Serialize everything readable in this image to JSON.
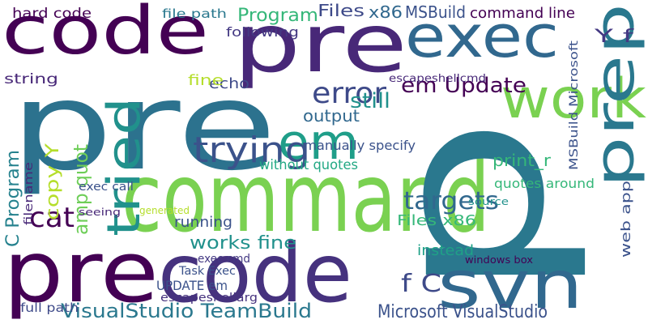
{
  "words": [
    {
      "text": "code",
      "color": "#440154"
    },
    {
      "text": "pre",
      "color": "#482878"
    },
    {
      "text": "exec",
      "color": "#31688e"
    },
    {
      "text": "pre",
      "color": "#2c728e"
    },
    {
      "text": "command",
      "color": "#7ad151"
    },
    {
      "text": "pre",
      "color": "#440154"
    },
    {
      "text": "code",
      "color": "#46327e"
    },
    {
      "text": "p",
      "color": "#2a788e"
    },
    {
      "text": "svn",
      "color": "#31688e"
    },
    {
      "text": "work",
      "color": "#7ad151"
    },
    {
      "text": "tried",
      "color": "#21918c"
    },
    {
      "text": "em",
      "color": "#1f9e89"
    },
    {
      "text": "prep",
      "color": "#2a788e"
    },
    {
      "text": "trying",
      "color": "#3b528b"
    },
    {
      "text": "targets",
      "color": "#31688e"
    },
    {
      "text": "error",
      "color": "#3e4a89"
    },
    {
      "text": "em Update",
      "color": "#440154"
    },
    {
      "text": "VisualStudio TeamBuild",
      "color": "#2a788e"
    },
    {
      "text": "Microsoft VisualStudio",
      "color": "#3b528b"
    },
    {
      "text": "hard code",
      "color": "#440154"
    },
    {
      "text": "Program",
      "color": "#35b779"
    },
    {
      "text": "Files",
      "color": "#3e4a89"
    },
    {
      "text": "x86",
      "color": "#31688e"
    },
    {
      "text": "MSBuild",
      "color": "#3b528b"
    },
    {
      "text": "command line",
      "color": "#440154"
    },
    {
      "text": "cat",
      "color": "#440154"
    },
    {
      "text": "amp quot",
      "color": "#6ece58"
    },
    {
      "text": "copy Y",
      "color": "#b5de2b"
    },
    {
      "text": "C Program",
      "color": "#26828e"
    },
    {
      "text": "works fine",
      "color": "#21918c"
    },
    {
      "text": "Files x86",
      "color": "#35b779"
    },
    {
      "text": "Y f",
      "color": "#443983"
    },
    {
      "text": "echo",
      "color": "#3e4a89"
    },
    {
      "text": "string",
      "color": "#482878"
    },
    {
      "text": "output",
      "color": "#31688e"
    },
    {
      "text": "still",
      "color": "#21918c"
    },
    {
      "text": "without quotes",
      "color": "#22a884"
    },
    {
      "text": "print_r",
      "color": "#35b779"
    },
    {
      "text": "instead",
      "color": "#1fa187"
    },
    {
      "text": "f C",
      "color": "#3e4a89"
    },
    {
      "text": "UPDATE em",
      "color": "#3b528b"
    },
    {
      "text": "full path",
      "color": "#3e4a89"
    },
    {
      "text": "running",
      "color": "#3b528b"
    },
    {
      "text": "file path",
      "color": "#2a788e"
    },
    {
      "text": "following",
      "color": "#443983"
    },
    {
      "text": "fine",
      "color": "#b5de2b"
    },
    {
      "text": "MSBuild Microsoft",
      "color": "#3b528b"
    },
    {
      "text": "escapeshellcmd",
      "color": "#482878"
    },
    {
      "text": "manually specify",
      "color": "#3b528b"
    },
    {
      "text": "quotes around",
      "color": "#35b779"
    },
    {
      "text": "exec call",
      "color": "#3b528b"
    },
    {
      "text": "filename",
      "color": "#482878"
    },
    {
      "text": "Task Exec",
      "color": "#3b528b"
    },
    {
      "text": "escapeshellarg",
      "color": "#46327e"
    },
    {
      "text": "exec cmd",
      "color": "#443983"
    },
    {
      "text": "web app",
      "color": "#3b528b"
    },
    {
      "text": "seeing",
      "color": "#482878"
    },
    {
      "text": "windows box",
      "color": "#440154"
    },
    {
      "text": "source",
      "color": "#21918c"
    },
    {
      "text": "generated",
      "color": "#b5de2b"
    }
  ]
}
